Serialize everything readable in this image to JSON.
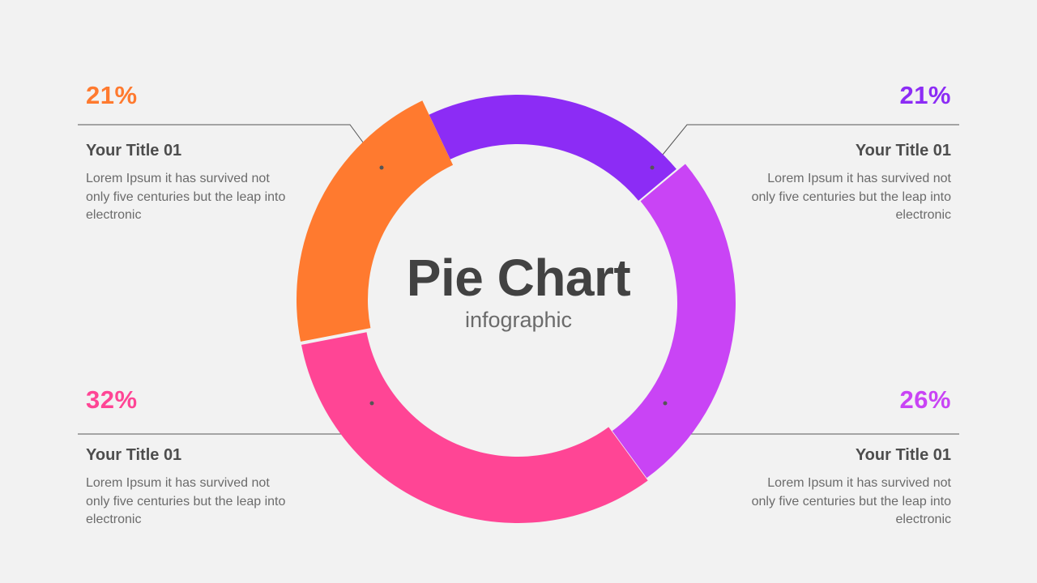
{
  "chart_data": {
    "type": "pie",
    "title": "Pie Chart",
    "subtitle": "infographic",
    "slices": [
      {
        "value": 21,
        "label": "21%",
        "color": "#ff7a2f",
        "title": "Your Title 01",
        "description": "Lorem Ipsum it has survived not only five centuries but the leap into electronic"
      },
      {
        "value": 21,
        "label": "21%",
        "color": "#8c2cf5",
        "title": "Your Title 01",
        "description": "Lorem Ipsum it has survived not only five centuries but the leap into electronic"
      },
      {
        "value": 26,
        "label": "26%",
        "color": "#c944f5",
        "title": "Your Title 01",
        "description": "Lorem Ipsum it has survived not only five centuries but the leap into electronic"
      },
      {
        "value": 32,
        "label": "32%",
        "color": "#ff4595",
        "title": "Your Title 01",
        "description": "Lorem Ipsum it has survived not only five centuries but the leap into electronic"
      }
    ]
  }
}
